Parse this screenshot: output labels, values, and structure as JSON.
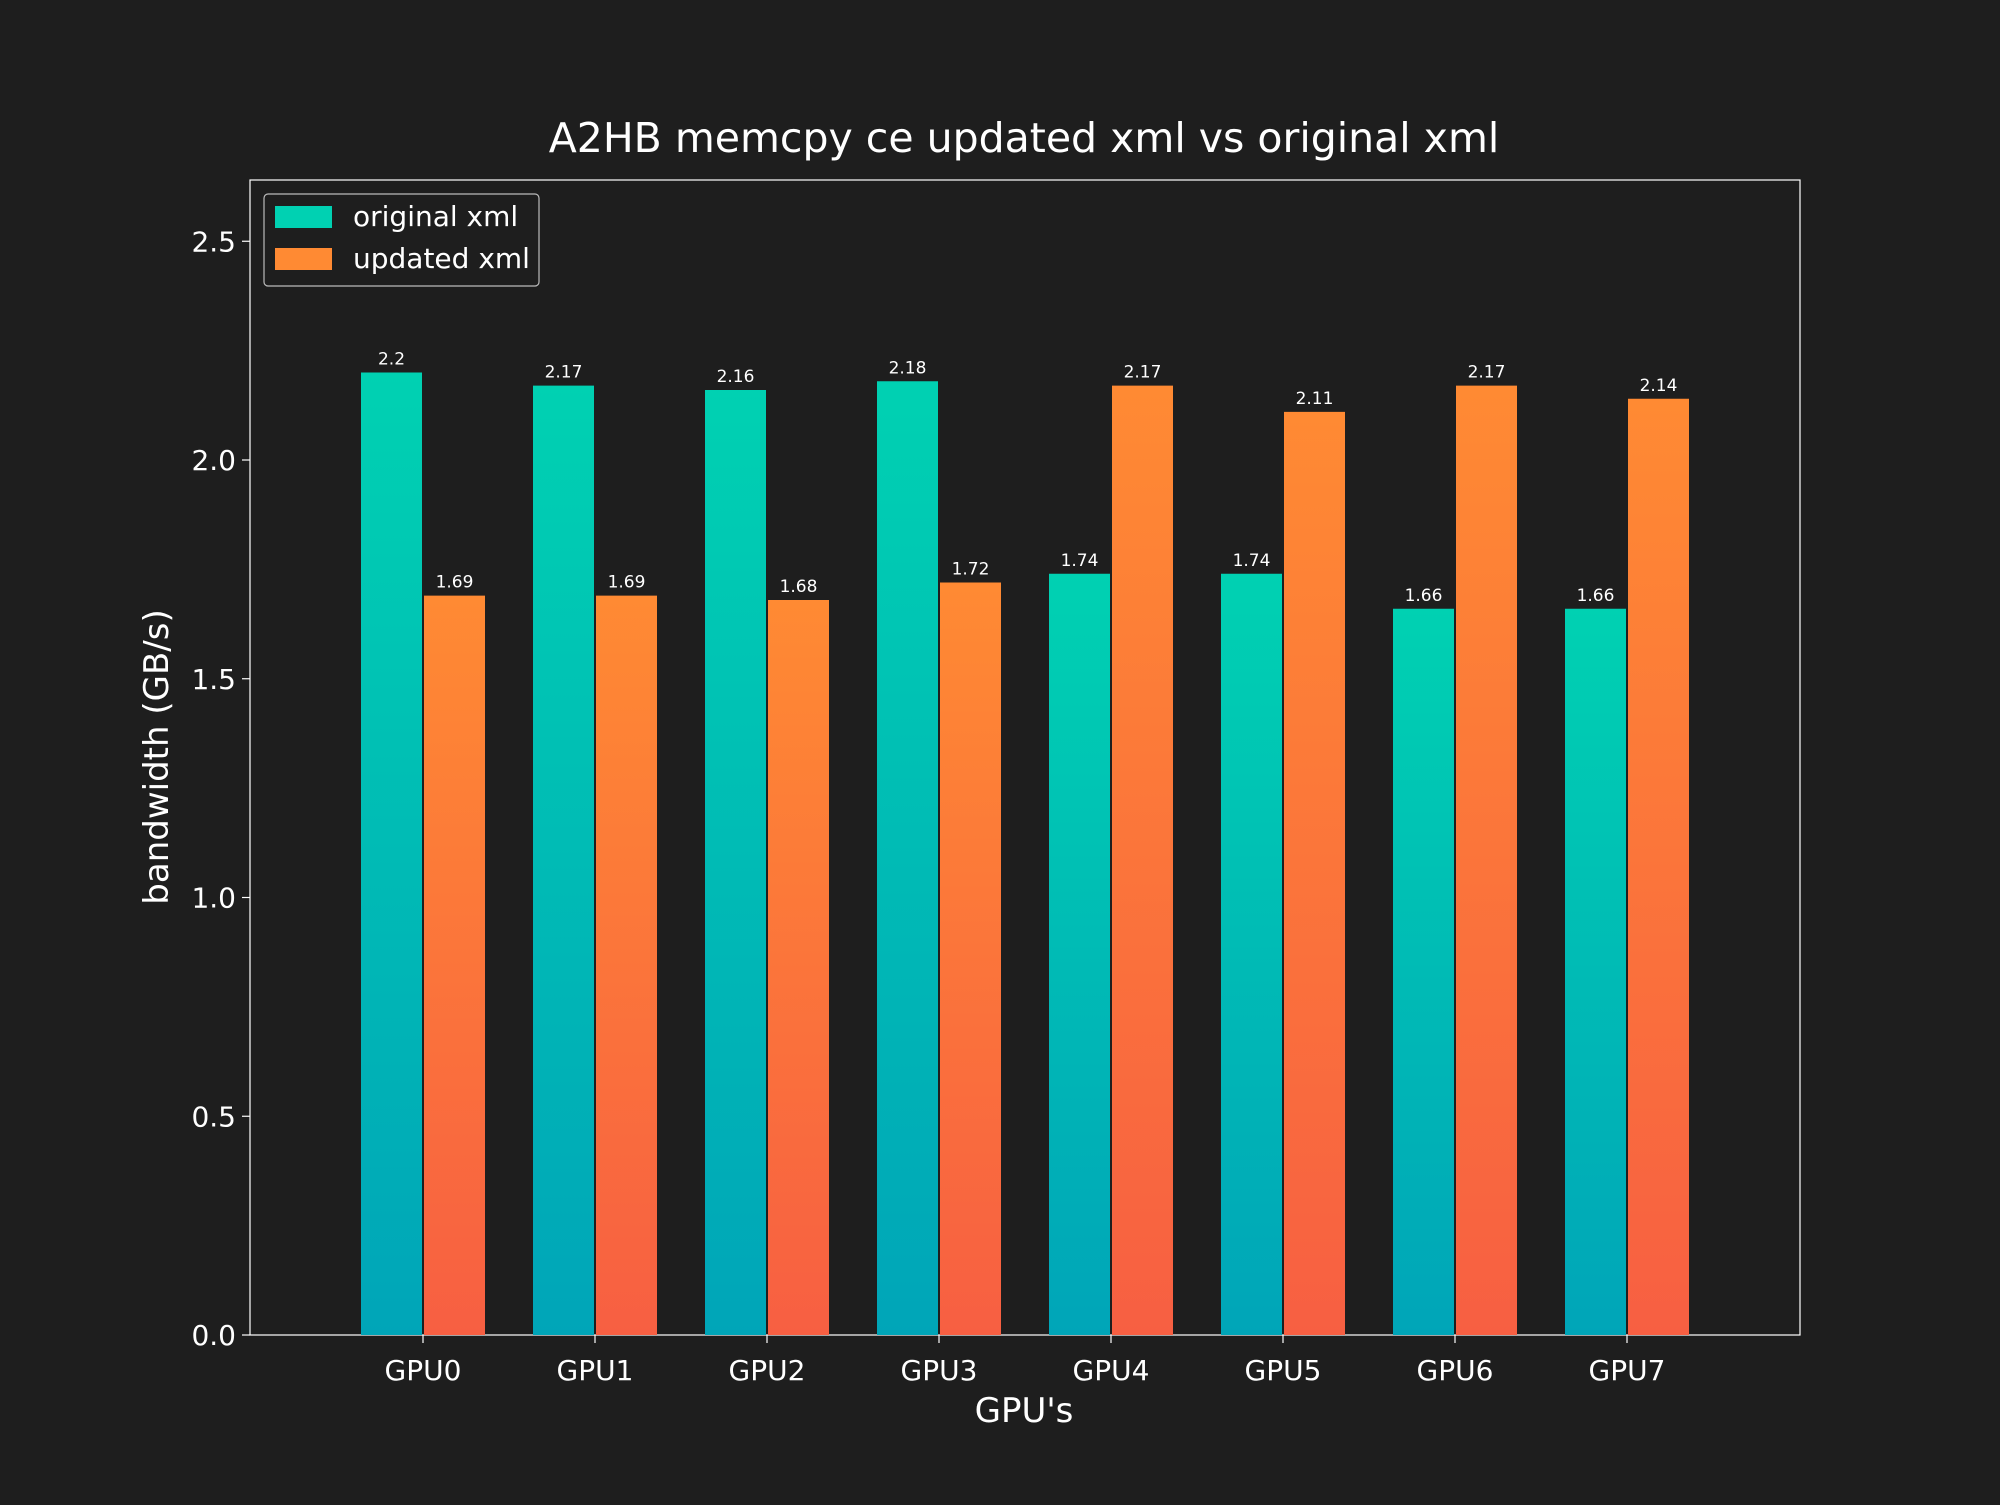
{
  "chart_data": {
    "type": "bar",
    "title": "A2HB memcpy ce updated xml vs original xml",
    "xlabel": "GPU's",
    "ylabel": "bandwidth (GB/s)",
    "categories": [
      "GPU0",
      "GPU1",
      "GPU2",
      "GPU3",
      "GPU4",
      "GPU5",
      "GPU6",
      "GPU7"
    ],
    "series": [
      {
        "name": "original xml",
        "values": [
          2.2,
          2.17,
          2.16,
          2.18,
          1.74,
          1.74,
          1.66,
          1.66
        ],
        "labels": [
          "2.2",
          "2.17",
          "2.16",
          "2.18",
          "1.74",
          "1.74",
          "1.66",
          "1.66"
        ],
        "color_top": "#00d1b2",
        "color_bottom": "#00a5b8"
      },
      {
        "name": "updated xml",
        "values": [
          1.69,
          1.69,
          1.68,
          1.72,
          2.17,
          2.11,
          2.17,
          2.14
        ],
        "labels": [
          "1.69",
          "1.69",
          "1.68",
          "1.72",
          "2.17",
          "2.11",
          "2.17",
          "2.14"
        ],
        "color_top": "#ff8a33",
        "color_bottom": "#f75f42"
      }
    ],
    "ylim": [
      0,
      2.64
    ],
    "yticks": [
      "0.0",
      "0.5",
      "1.0",
      "1.5",
      "2.0",
      "2.5"
    ],
    "grid": false,
    "legend_position": "top-left",
    "colors": {
      "background": "#1e1e1e",
      "text": "#ffffff",
      "axes": "#ffffff"
    }
  }
}
